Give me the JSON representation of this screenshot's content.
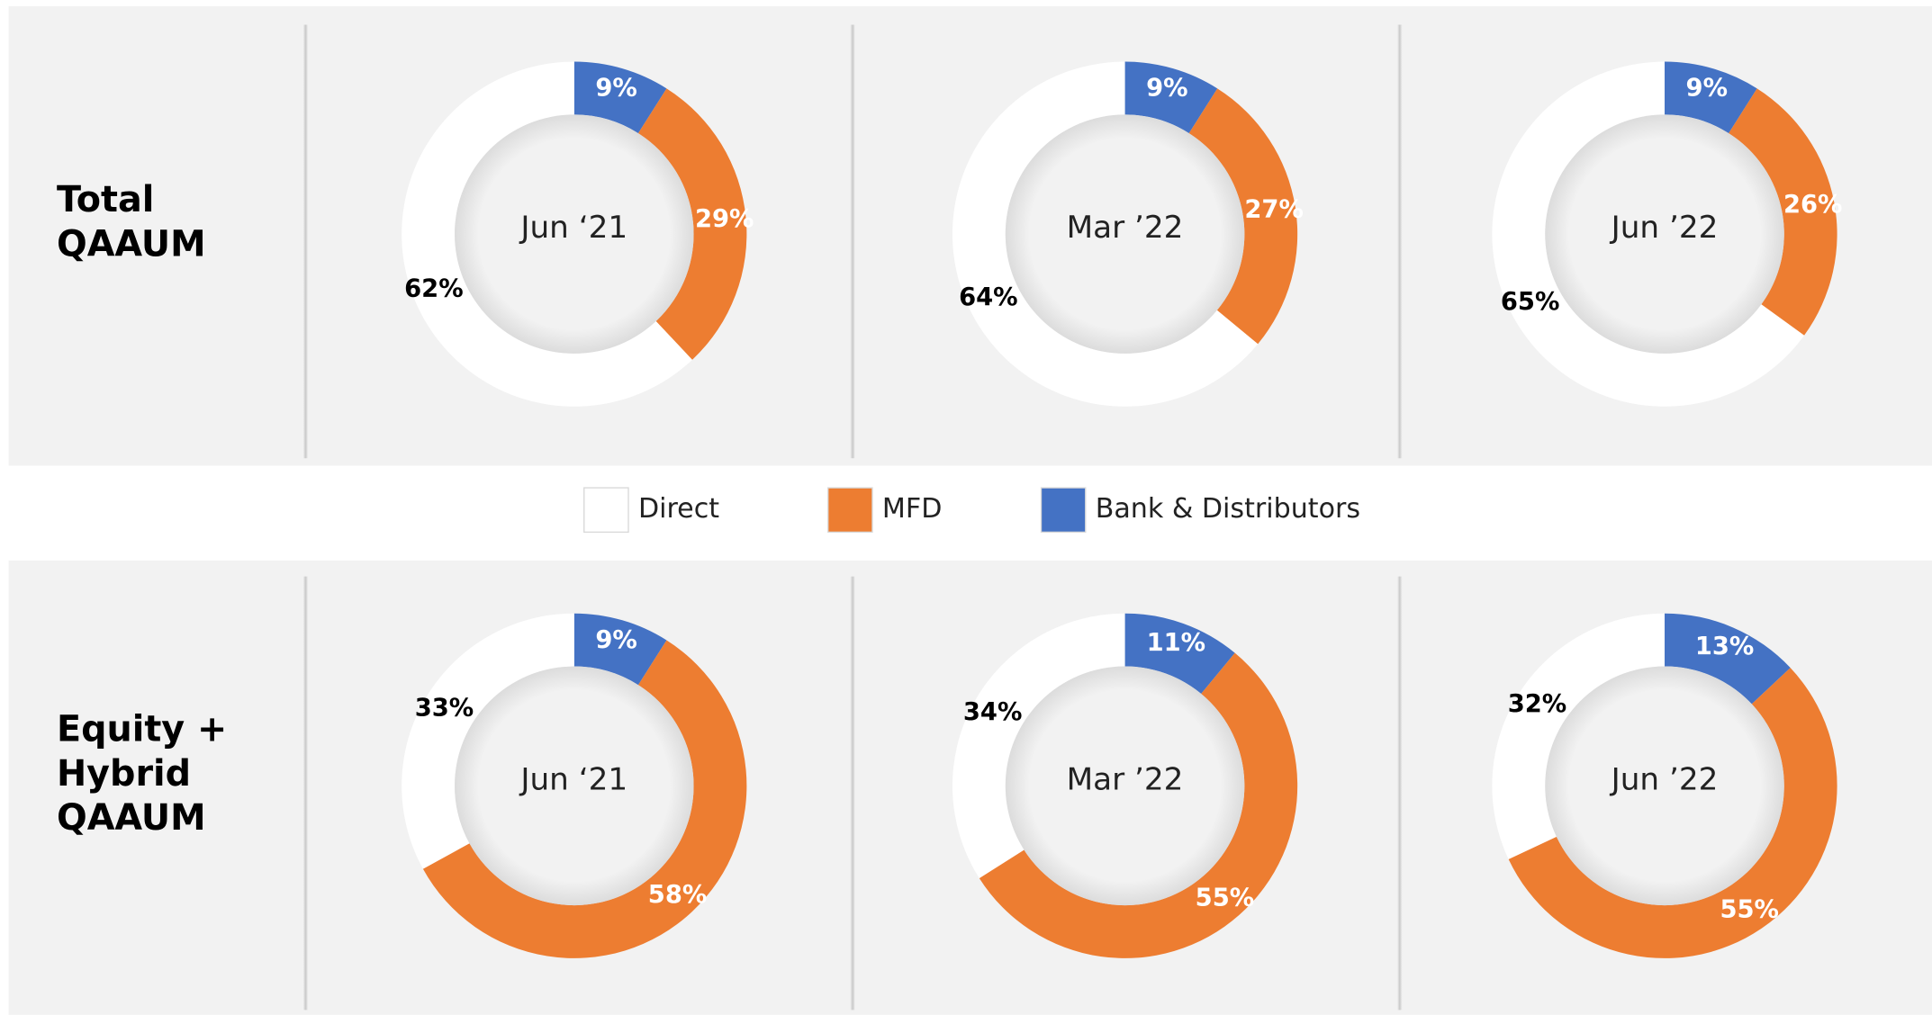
{
  "row_labels": [
    [
      "Total",
      "QAAUM"
    ],
    [
      "Equity +",
      "Hybrid",
      "QAAUM"
    ]
  ],
  "chart_data": [
    {
      "type": "pie",
      "donut": true,
      "row": 0,
      "title": "Jun ‘21",
      "categories": [
        "Direct",
        "MFD",
        "Bank & Distributors"
      ],
      "colors": [
        "#ffffff",
        "#ed7d31",
        "#4472c4"
      ],
      "values": [
        62,
        29,
        9
      ],
      "value_labels": [
        "62%",
        "29%",
        "9%"
      ]
    },
    {
      "type": "pie",
      "donut": true,
      "row": 0,
      "title": "Mar ’22",
      "categories": [
        "Direct",
        "MFD",
        "Bank & Distributors"
      ],
      "colors": [
        "#ffffff",
        "#ed7d31",
        "#4472c4"
      ],
      "values": [
        64,
        27,
        9
      ],
      "value_labels": [
        "64%",
        "27%",
        "9%"
      ]
    },
    {
      "type": "pie",
      "donut": true,
      "row": 0,
      "title": "Jun ’22",
      "categories": [
        "Direct",
        "MFD",
        "Bank & Distributors"
      ],
      "colors": [
        "#ffffff",
        "#ed7d31",
        "#4472c4"
      ],
      "values": [
        65,
        26,
        9
      ],
      "value_labels": [
        "65%",
        "26%",
        "9%"
      ]
    },
    {
      "type": "pie",
      "donut": true,
      "row": 1,
      "title": "Jun ‘21",
      "categories": [
        "Direct",
        "MFD",
        "Bank & Distributors"
      ],
      "colors": [
        "#ffffff",
        "#ed7d31",
        "#4472c4"
      ],
      "values": [
        33,
        58,
        9
      ],
      "value_labels": [
        "33%",
        "58%",
        "9%"
      ]
    },
    {
      "type": "pie",
      "donut": true,
      "row": 1,
      "title": "Mar ’22",
      "categories": [
        "Direct",
        "MFD",
        "Bank & Distributors"
      ],
      "colors": [
        "#ffffff",
        "#ed7d31",
        "#4472c4"
      ],
      "values": [
        34,
        55,
        11
      ],
      "value_labels": [
        "34%",
        "55%",
        "11%"
      ]
    },
    {
      "type": "pie",
      "donut": true,
      "row": 1,
      "title": "Jun ’22",
      "categories": [
        "Direct",
        "MFD",
        "Bank & Distributors"
      ],
      "colors": [
        "#ffffff",
        "#ed7d31",
        "#4472c4"
      ],
      "values": [
        32,
        55,
        13
      ],
      "value_labels": [
        "32%",
        "55%",
        "13%"
      ]
    }
  ]
}
